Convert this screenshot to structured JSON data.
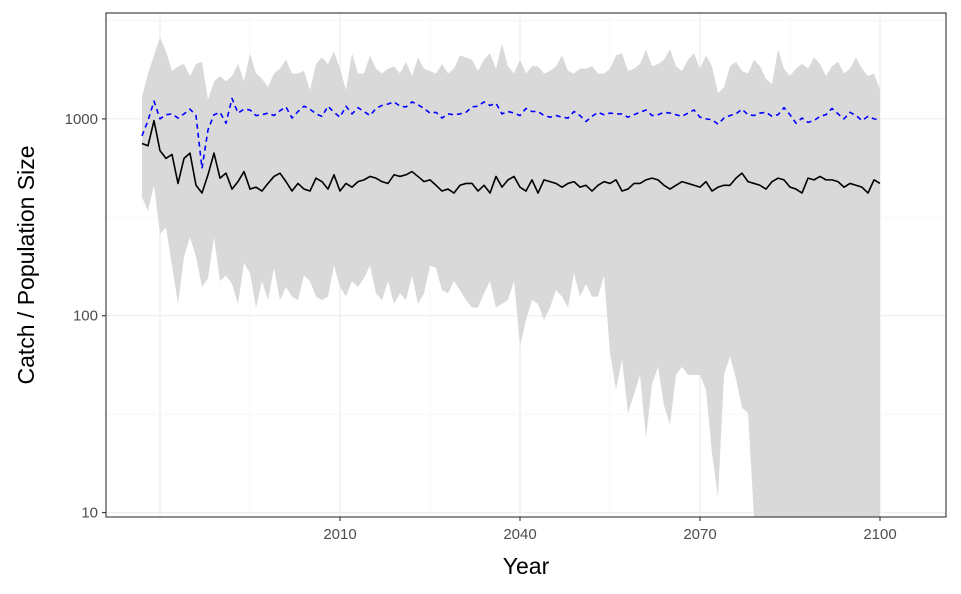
{
  "chart_data": {
    "type": "line",
    "title": "",
    "xlabel": "Year",
    "ylabel": "Catch / Population Size",
    "xlim": [
      1971,
      2111
    ],
    "ylim": [
      9.5,
      3450
    ],
    "yscale": "log10",
    "x_ticks": [
      2010,
      2040,
      2070,
      2100
    ],
    "y_ticks": [
      10,
      100,
      1000
    ],
    "y_tick_labels": [
      "10",
      "100",
      "1000"
    ],
    "grid": true,
    "legend": "none",
    "colors": {
      "band": "#d9d9d9",
      "median": "#000000",
      "reference": "#0000ff",
      "grid_major": "#ebebeb",
      "grid_minor": "#f5f5f5"
    },
    "band": {
      "name": "",
      "x": [
        1977,
        1978,
        1979,
        1980,
        1981,
        1982,
        1983,
        1984,
        1985,
        1986,
        1987,
        1988,
        1989,
        1990,
        1991,
        1992,
        1993,
        1994,
        1995,
        1996,
        1997,
        1998,
        1999,
        2000,
        2001,
        2002,
        2003,
        2004,
        2005,
        2006,
        2007,
        2008,
        2009,
        2010,
        2011,
        2012,
        2013,
        2014,
        2015,
        2016,
        2017,
        2018,
        2019,
        2020,
        2021,
        2022,
        2023,
        2024,
        2025,
        2026,
        2027,
        2028,
        2029,
        2030,
        2031,
        2032,
        2033,
        2034,
        2035,
        2036,
        2037,
        2038,
        2039,
        2040,
        2041,
        2042,
        2043,
        2044,
        2045,
        2046,
        2047,
        2048,
        2049,
        2050,
        2051,
        2052,
        2053,
        2054,
        2055,
        2056,
        2057,
        2058,
        2059,
        2060,
        2061,
        2062,
        2063,
        2064,
        2065,
        2066,
        2067,
        2068,
        2069,
        2070,
        2071,
        2072,
        2073,
        2074,
        2075,
        2076,
        2077,
        2078,
        2079,
        2080,
        2081,
        2082,
        2083,
        2084,
        2085,
        2086,
        2087,
        2088,
        2089,
        2090,
        2091,
        2092,
        2093,
        2094,
        2095,
        2096,
        2097,
        2098,
        2099,
        2100
      ],
      "lower": [
        400,
        340,
        460,
        260,
        280,
        180,
        115,
        200,
        250,
        200,
        140,
        155,
        250,
        150,
        160,
        145,
        115,
        185,
        165,
        110,
        150,
        120,
        175,
        120,
        140,
        125,
        120,
        160,
        150,
        125,
        120,
        125,
        180,
        140,
        125,
        150,
        140,
        155,
        180,
        130,
        120,
        150,
        115,
        130,
        120,
        160,
        115,
        130,
        180,
        175,
        135,
        130,
        150,
        135,
        120,
        110,
        110,
        130,
        150,
        110,
        115,
        120,
        150,
        70,
        95,
        120,
        115,
        95,
        110,
        135,
        125,
        110,
        165,
        125,
        145,
        125,
        125,
        160,
        65,
        42,
        60,
        32,
        40,
        50,
        24,
        45,
        55,
        35,
        28,
        50,
        55,
        50,
        50,
        50,
        42,
        20,
        12,
        50,
        62,
        48,
        34,
        32,
        9.5,
        9.5,
        9.5,
        9.5,
        9.5,
        9.5,
        9.5,
        9.5,
        9.5,
        9.5,
        9.5,
        9.5,
        9.5,
        9.5,
        9.5,
        9.5,
        9.5,
        9.5,
        9.5,
        9.5,
        9.5,
        9.5
      ],
      "upper": [
        1300,
        1700,
        2100,
        2600,
        2200,
        1750,
        1850,
        1900,
        1650,
        1900,
        1950,
        1250,
        1550,
        1650,
        1550,
        1650,
        1900,
        1550,
        2150,
        1700,
        1600,
        1450,
        1700,
        1800,
        2000,
        1700,
        1700,
        1750,
        1400,
        1900,
        2050,
        1900,
        2200,
        1800,
        1400,
        2150,
        1700,
        1700,
        2100,
        1800,
        1700,
        1800,
        1850,
        1700,
        1950,
        1650,
        2050,
        1800,
        1750,
        1700,
        1900,
        1700,
        1800,
        2100,
        2050,
        2000,
        1750,
        2000,
        2150,
        1800,
        2400,
        1850,
        1700,
        2000,
        1700,
        1850,
        1850,
        1700,
        1750,
        1850,
        2100,
        1750,
        1700,
        1800,
        1800,
        1850,
        1700,
        1700,
        1800,
        2100,
        2150,
        1750,
        1800,
        1900,
        2250,
        1850,
        1900,
        2000,
        2250,
        1850,
        1750,
        2000,
        2150,
        1800,
        2100,
        1850,
        1350,
        1450,
        1850,
        1950,
        1750,
        1700,
        2000,
        1850,
        1600,
        1500,
        2250,
        1800,
        1650,
        1800,
        1900,
        1800,
        2050,
        1900,
        1650,
        1850,
        1950,
        1700,
        1800,
        2050,
        1800,
        1650,
        1700,
        1400
      ]
    },
    "series": [
      {
        "name": "",
        "style": "solid",
        "x": [
          1977,
          1978,
          1979,
          1980,
          1981,
          1982,
          1983,
          1984,
          1985,
          1986,
          1987,
          1988,
          1989,
          1990,
          1991,
          1992,
          1993,
          1994,
          1995,
          1996,
          1997,
          1998,
          1999,
          2000,
          2001,
          2002,
          2003,
          2004,
          2005,
          2006,
          2007,
          2008,
          2009,
          2010,
          2011,
          2012,
          2013,
          2014,
          2015,
          2016,
          2017,
          2018,
          2019,
          2020,
          2021,
          2022,
          2023,
          2024,
          2025,
          2026,
          2027,
          2028,
          2029,
          2030,
          2031,
          2032,
          2033,
          2034,
          2035,
          2036,
          2037,
          2038,
          2039,
          2040,
          2041,
          2042,
          2043,
          2044,
          2045,
          2046,
          2047,
          2048,
          2049,
          2050,
          2051,
          2052,
          2053,
          2054,
          2055,
          2056,
          2057,
          2058,
          2059,
          2060,
          2061,
          2062,
          2063,
          2064,
          2065,
          2066,
          2067,
          2068,
          2069,
          2070,
          2071,
          2072,
          2073,
          2074,
          2075,
          2076,
          2077,
          2078,
          2079,
          2080,
          2081,
          2082,
          2083,
          2084,
          2085,
          2086,
          2087,
          2088,
          2089,
          2090,
          2091,
          2092,
          2093,
          2094,
          2095,
          2096,
          2097,
          2098,
          2099,
          2100
        ],
        "y": [
          750,
          730,
          980,
          690,
          630,
          660,
          470,
          630,
          670,
          460,
          420,
          520,
          670,
          500,
          530,
          440,
          480,
          540,
          440,
          450,
          430,
          470,
          510,
          530,
          480,
          430,
          470,
          440,
          430,
          500,
          480,
          440,
          520,
          430,
          470,
          450,
          480,
          490,
          510,
          500,
          480,
          470,
          520,
          510,
          520,
          540,
          510,
          480,
          490,
          460,
          430,
          440,
          420,
          460,
          470,
          470,
          430,
          460,
          420,
          510,
          450,
          490,
          510,
          450,
          430,
          490,
          420,
          490,
          480,
          470,
          450,
          470,
          480,
          450,
          460,
          430,
          460,
          480,
          470,
          490,
          430,
          440,
          470,
          470,
          490,
          500,
          490,
          460,
          440,
          460,
          480,
          470,
          460,
          450,
          480,
          430,
          450,
          460,
          460,
          500,
          530,
          480,
          470,
          460,
          440,
          480,
          500,
          490,
          450,
          440,
          420,
          500,
          490,
          510,
          490,
          490,
          480,
          450,
          470,
          460,
          450,
          420,
          490,
          470
        ],
        "color": "#000000"
      },
      {
        "name": "",
        "style": "dashed",
        "x": [
          1977,
          1978,
          1979,
          1980,
          1981,
          1982,
          1983,
          1984,
          1985,
          1986,
          1987,
          1988,
          1989,
          1990,
          1991,
          1992,
          1993,
          1994,
          1995,
          1996,
          1997,
          1998,
          1999,
          2000,
          2001,
          2002,
          2003,
          2004,
          2005,
          2006,
          2007,
          2008,
          2009,
          2010,
          2011,
          2012,
          2013,
          2014,
          2015,
          2016,
          2017,
          2018,
          2019,
          2020,
          2021,
          2022,
          2023,
          2024,
          2025,
          2026,
          2027,
          2028,
          2029,
          2030,
          2031,
          2032,
          2033,
          2034,
          2035,
          2036,
          2037,
          2038,
          2039,
          2040,
          2041,
          2042,
          2043,
          2044,
          2045,
          2046,
          2047,
          2048,
          2049,
          2050,
          2051,
          2052,
          2053,
          2054,
          2055,
          2056,
          2057,
          2058,
          2059,
          2060,
          2061,
          2062,
          2063,
          2064,
          2065,
          2066,
          2067,
          2068,
          2069,
          2070,
          2071,
          2072,
          2073,
          2074,
          2075,
          2076,
          2077,
          2078,
          2079,
          2080,
          2081,
          2082,
          2083,
          2084,
          2085,
          2086,
          2087,
          2088,
          2089,
          2090,
          2091,
          2092,
          2093,
          2094,
          2095,
          2096,
          2097,
          2098,
          2099,
          2100
        ],
        "y": [
          820,
          980,
          1230,
          1000,
          1050,
          1060,
          1010,
          1060,
          1120,
          1040,
          560,
          880,
          1050,
          1080,
          950,
          1270,
          1070,
          1120,
          1110,
          1040,
          1050,
          1070,
          1040,
          1100,
          1150,
          1010,
          1090,
          1160,
          1120,
          1060,
          1030,
          1160,
          1080,
          1020,
          1160,
          1060,
          1140,
          1090,
          1040,
          1130,
          1170,
          1190,
          1220,
          1160,
          1150,
          1220,
          1180,
          1130,
          1070,
          1080,
          1010,
          1060,
          1050,
          1060,
          1080,
          1150,
          1160,
          1220,
          1170,
          1200,
          1060,
          1090,
          1070,
          1040,
          1130,
          1090,
          1090,
          1040,
          1020,
          1040,
          1020,
          1010,
          1090,
          1040,
          970,
          1030,
          1080,
          1050,
          1070,
          1060,
          1060,
          1020,
          1050,
          1080,
          1110,
          1040,
          1050,
          1080,
          1070,
          1050,
          1030,
          1070,
          1110,
          1020,
          1000,
          990,
          940,
          1010,
          1040,
          1060,
          1120,
          1050,
          1040,
          1070,
          1080,
          1030,
          1050,
          1140,
          1050,
          950,
          1010,
          960,
          980,
          1030,
          1050,
          1130,
          1060,
          1000,
          1080,
          1040,
          980,
          1030,
          1000,
          990
        ],
        "color": "#0000ff"
      }
    ]
  }
}
